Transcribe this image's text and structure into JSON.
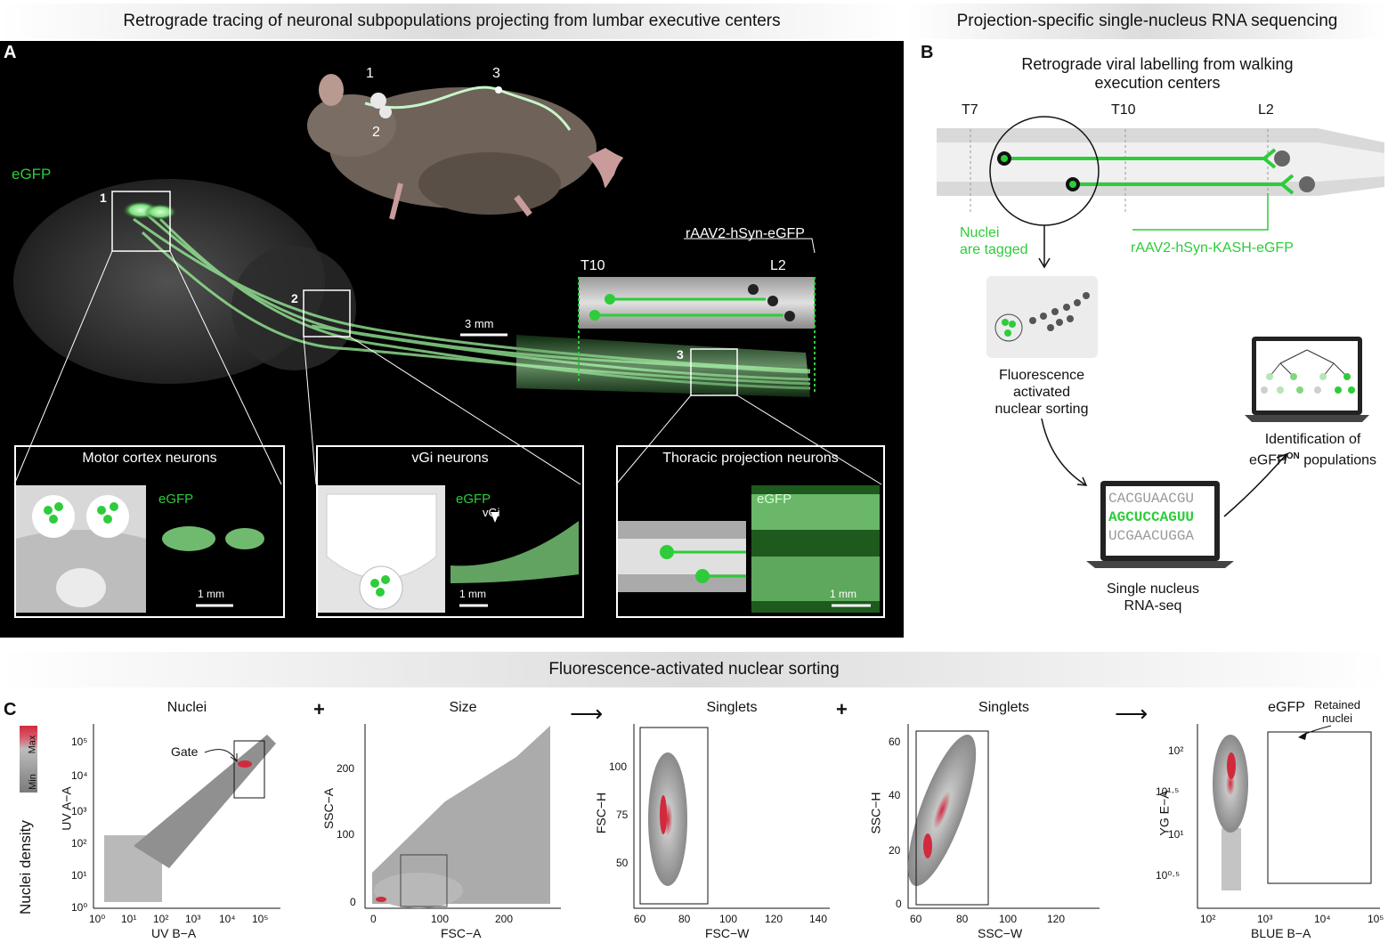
{
  "headers": {
    "panel_a": "Retrograde tracing of neuronal subpopulations projecting from lumbar executive centers",
    "panel_b": "Projection-specific single-nucleus RNA sequencing",
    "panel_c": "Fluorescence-activated nuclear sorting"
  },
  "panel_letters": [
    "A",
    "B",
    "C"
  ],
  "panel_a": {
    "egfp": "eGFP",
    "mouse_points": [
      "1",
      "2",
      "3"
    ],
    "virus": "rAAV2-hSyn-eGFP",
    "t10": "T10",
    "l2": "L2",
    "scale_main": "3 mm",
    "insets": [
      {
        "title": "Motor cortex neurons",
        "label": "eGFP",
        "scale": "1 mm",
        "id": "1"
      },
      {
        "title": "vGi neurons",
        "label": "eGFP",
        "scale": "1 mm",
        "id": "2",
        "annot": "vGi"
      },
      {
        "title": "Thoracic projection neurons",
        "label": "eGFP",
        "scale": "1 mm",
        "id": "3"
      }
    ]
  },
  "panel_b": {
    "title_line1": "Retrograde viral labelling from walking",
    "title_line2": "execution centers",
    "levels": [
      "T7",
      "T10",
      "L2"
    ],
    "nuclei_tag_1": "Nuclei",
    "nuclei_tag_2": "are tagged",
    "virus": "rAAV2-hSyn-KASH-eGFP",
    "facs": [
      "Fluorescence",
      "activated",
      "nuclear sorting"
    ],
    "seq_lines": [
      "CACGUAACGU",
      "AGCUCCAGUU",
      "UCGAACUGGA"
    ],
    "snrna": [
      "Single nucleus",
      "RNA-seq"
    ],
    "ident": [
      "Identification of",
      "eGFP",
      "ON",
      " populations"
    ]
  },
  "panel_c": {
    "density_label": "Nuclei density",
    "density_min": "Min",
    "density_max": "Max",
    "plus": "+",
    "arrow": "⟶",
    "plots": [
      {
        "title": "Nuclei",
        "xlabel": "UV B−A",
        "ylabel": "UV A−A",
        "annot": "Gate",
        "xticks": [
          "10⁰",
          "10¹",
          "10²",
          "10³",
          "10⁴",
          "10⁵"
        ],
        "yticks": [
          "10⁰",
          "10¹",
          "10²",
          "10³",
          "10⁴",
          "10⁵"
        ]
      },
      {
        "title": "Size",
        "xlabel": "FSC−A",
        "ylabel": "SSC−A",
        "xticks": [
          "0",
          "100",
          "200"
        ],
        "yticks": [
          "0",
          "100",
          "200"
        ]
      },
      {
        "title": "Singlets",
        "xlabel": "FSC−W",
        "ylabel": "FSC−H",
        "xticks": [
          "60",
          "80",
          "100",
          "120",
          "140"
        ],
        "yticks": [
          "50",
          "75",
          "100"
        ]
      },
      {
        "title": "Singlets",
        "xlabel": "SSC−W",
        "ylabel": "SSC−H",
        "xticks": [
          "60",
          "80",
          "100",
          "120"
        ],
        "yticks": [
          "0",
          "20",
          "40",
          "60"
        ]
      },
      {
        "title": "eGFP",
        "xlabel": "BLUE B−A",
        "ylabel": "YG E−A",
        "annot1": "Retained",
        "annot2": "nuclei",
        "xticks": [
          "10²",
          "10³",
          "10⁴",
          "10⁵"
        ],
        "yticks": [
          "10⁰·⁵",
          "10¹",
          "10¹·⁵",
          "10²"
        ]
      }
    ]
  }
}
